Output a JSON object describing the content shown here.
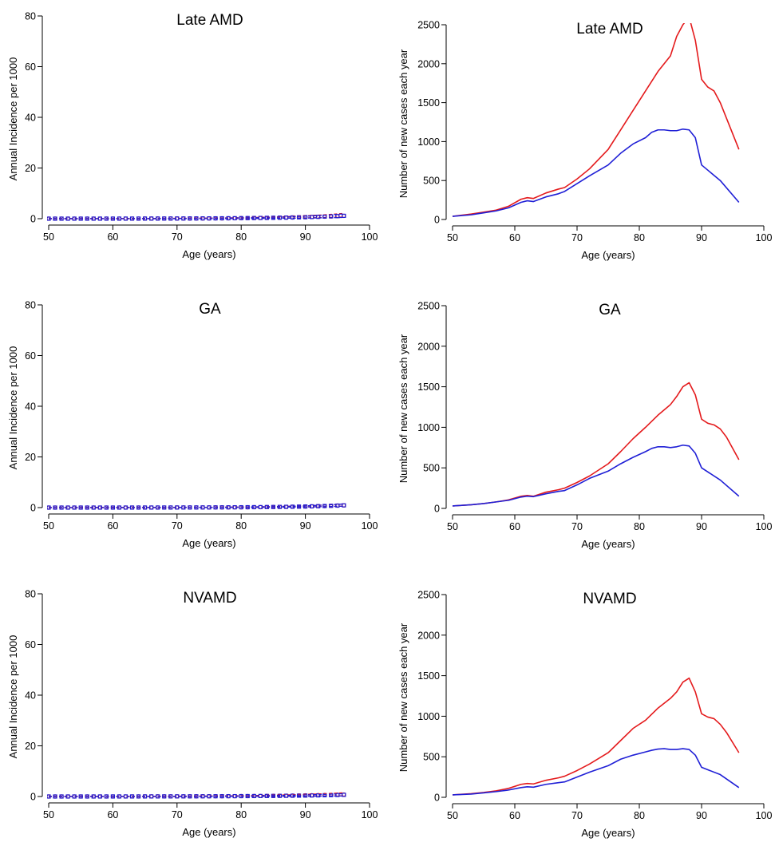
{
  "colors": {
    "red": "#e41a1c",
    "blue": "#1f1fd6"
  },
  "chart_data": [
    {
      "type": "scatter",
      "title": "Late AMD",
      "xlabel": "Age (years)",
      "ylabel": "Annual Incidence per 1000",
      "xlim": [
        50,
        100
      ],
      "xticks": [
        50,
        60,
        70,
        80,
        90,
        100
      ],
      "ylim": [
        0,
        80
      ],
      "yticks": [
        0,
        20,
        40,
        60,
        80
      ],
      "x_start": 50,
      "x_end": 96,
      "series": [
        {
          "kind": "points",
          "marker": "circle",
          "color": "red",
          "a": 0.0073,
          "b": 0.1093
        },
        {
          "kind": "points",
          "marker": "square",
          "color": "blue",
          "a": 0.0088,
          "b": 0.1056
        },
        {
          "kind": "dashed",
          "color": "red",
          "a": 0.0171,
          "b": 0.1047
        },
        {
          "kind": "dashed",
          "color": "blue",
          "a": 0.0117,
          "b": 0.1109
        },
        {
          "kind": "dashed",
          "color": "red",
          "a": 0.004,
          "b": 0.1105
        },
        {
          "kind": "dashed",
          "color": "blue",
          "a": 0.0026,
          "b": 0.1139
        }
      ]
    },
    {
      "type": "line",
      "title": "Late AMD",
      "xlabel": "Age (years)",
      "ylabel": "Number of new cases each year",
      "xlim": [
        50,
        100
      ],
      "xticks": [
        50,
        60,
        70,
        80,
        90,
        100
      ],
      "ylim": [
        0,
        2500
      ],
      "yticks": [
        0,
        500,
        1000,
        1500,
        2000,
        2500
      ],
      "series": [
        {
          "color": "red",
          "x": [
            50,
            53,
            55,
            57,
            59,
            61,
            62,
            63,
            65,
            67,
            68,
            70,
            72,
            75,
            77,
            79,
            81,
            83,
            85,
            86,
            87,
            88,
            89,
            90,
            91,
            92,
            93,
            96
          ],
          "y": [
            40,
            70,
            95,
            120,
            170,
            260,
            280,
            270,
            340,
            390,
            410,
            520,
            650,
            900,
            1150,
            1400,
            1650,
            1900,
            2100,
            2350,
            2500,
            2600,
            2300,
            1800,
            1700,
            1650,
            1500,
            900
          ]
        },
        {
          "color": "blue",
          "x": [
            50,
            53,
            55,
            57,
            59,
            61,
            62,
            63,
            65,
            67,
            68,
            70,
            72,
            75,
            77,
            79,
            81,
            82,
            83,
            84,
            85,
            86,
            87,
            88,
            89,
            90,
            93,
            96
          ],
          "y": [
            40,
            60,
            85,
            110,
            150,
            220,
            240,
            230,
            290,
            330,
            360,
            460,
            560,
            700,
            850,
            970,
            1050,
            1120,
            1150,
            1150,
            1140,
            1140,
            1160,
            1150,
            1050,
            700,
            500,
            220
          ]
        }
      ]
    },
    {
      "type": "scatter",
      "title": "GA",
      "xlabel": "Age (years)",
      "ylabel": "Annual Incidence per 1000",
      "xlim": [
        50,
        100
      ],
      "xticks": [
        50,
        60,
        70,
        80,
        90,
        100
      ],
      "ylim": [
        0,
        80
      ],
      "yticks": [
        0,
        20,
        40,
        60,
        80
      ],
      "x_start": 50,
      "x_end": 96,
      "series": [
        {
          "kind": "points",
          "marker": "circle",
          "color": "red",
          "a": 0.0036,
          "b": 0.1198
        },
        {
          "kind": "points",
          "marker": "square",
          "color": "blue",
          "a": 0.0036,
          "b": 0.1198
        },
        {
          "kind": "dashed",
          "color": "red",
          "a": 0.0062,
          "b": 0.1187
        },
        {
          "kind": "dashed",
          "color": "blue",
          "a": 0.006,
          "b": 0.1192
        },
        {
          "kind": "dashed",
          "color": "red",
          "a": 0.0024,
          "b": 0.1187
        },
        {
          "kind": "dashed",
          "color": "blue",
          "a": 0.0023,
          "b": 0.1192
        }
      ]
    },
    {
      "type": "line",
      "title": "GA",
      "xlabel": "Age (years)",
      "ylabel": "Number of new cases each year",
      "xlim": [
        50,
        100
      ],
      "xticks": [
        50,
        60,
        70,
        80,
        90,
        100
      ],
      "ylim": [
        0,
        2500
      ],
      "yticks": [
        0,
        500,
        1000,
        1500,
        2000,
        2500
      ],
      "series": [
        {
          "color": "red",
          "x": [
            50,
            53,
            55,
            57,
            59,
            61,
            62,
            63,
            65,
            67,
            68,
            70,
            72,
            75,
            77,
            79,
            81,
            83,
            85,
            86,
            87,
            88,
            89,
            90,
            91,
            92,
            93,
            94,
            96
          ],
          "y": [
            30,
            45,
            60,
            80,
            105,
            150,
            160,
            150,
            200,
            230,
            250,
            320,
            400,
            550,
            700,
            860,
            1000,
            1150,
            1280,
            1380,
            1500,
            1550,
            1400,
            1100,
            1050,
            1030,
            980,
            880,
            600
          ]
        },
        {
          "color": "blue",
          "x": [
            50,
            53,
            55,
            57,
            59,
            61,
            62,
            63,
            65,
            67,
            68,
            70,
            72,
            75,
            77,
            79,
            81,
            82,
            83,
            84,
            85,
            86,
            87,
            88,
            89,
            90,
            93,
            96
          ],
          "y": [
            30,
            45,
            60,
            80,
            100,
            140,
            150,
            145,
            180,
            210,
            220,
            290,
            370,
            460,
            550,
            630,
            700,
            740,
            760,
            760,
            750,
            760,
            780,
            770,
            680,
            500,
            350,
            150
          ]
        }
      ]
    },
    {
      "type": "scatter",
      "title": "NVAMD",
      "xlabel": "Age (years)",
      "ylabel": "Annual Incidence per 1000",
      "xlim": [
        50,
        100
      ],
      "xticks": [
        50,
        60,
        70,
        80,
        90,
        100
      ],
      "ylim": [
        0,
        80
      ],
      "yticks": [
        0,
        20,
        40,
        60,
        80
      ],
      "x_start": 50,
      "x_end": 96,
      "series": [
        {
          "kind": "points",
          "marker": "circle",
          "color": "red",
          "a": 0.0086,
          "b": 0.098
        },
        {
          "kind": "points",
          "marker": "square",
          "color": "blue",
          "a": 0.0086,
          "b": 0.0944
        },
        {
          "kind": "dashed",
          "color": "red",
          "a": 0.0194,
          "b": 0.0942
        },
        {
          "kind": "dashed",
          "color": "blue",
          "a": 0.0121,
          "b": 0.0985
        },
        {
          "kind": "dashed",
          "color": "red",
          "a": 0.002,
          "b": 0.1084
        },
        {
          "kind": "dashed",
          "color": "blue",
          "a": 0.0013,
          "b": 0.111
        }
      ]
    },
    {
      "type": "line",
      "title": "NVAMD",
      "xlabel": "Age (years)",
      "ylabel": "Number of new cases each year",
      "xlim": [
        50,
        100
      ],
      "xticks": [
        50,
        60,
        70,
        80,
        90,
        100
      ],
      "ylim": [
        0,
        2500
      ],
      "yticks": [
        0,
        500,
        1000,
        1500,
        2000,
        2500
      ],
      "series": [
        {
          "color": "red",
          "x": [
            50,
            53,
            55,
            57,
            59,
            61,
            62,
            63,
            65,
            67,
            68,
            70,
            72,
            75,
            77,
            79,
            81,
            83,
            85,
            86,
            87,
            88,
            89,
            90,
            91,
            92,
            93,
            94,
            96
          ],
          "y": [
            30,
            45,
            60,
            80,
            110,
            160,
            170,
            165,
            210,
            240,
            260,
            330,
            410,
            550,
            700,
            850,
            950,
            1100,
            1220,
            1300,
            1420,
            1470,
            1300,
            1030,
            990,
            970,
            900,
            800,
            550
          ]
        },
        {
          "color": "blue",
          "x": [
            50,
            53,
            55,
            57,
            59,
            61,
            62,
            63,
            65,
            67,
            68,
            70,
            72,
            75,
            77,
            79,
            81,
            82,
            83,
            84,
            85,
            86,
            87,
            88,
            89,
            90,
            93,
            96
          ],
          "y": [
            30,
            40,
            55,
            70,
            90,
            120,
            130,
            125,
            160,
            180,
            190,
            250,
            310,
            390,
            470,
            520,
            560,
            580,
            595,
            600,
            590,
            590,
            600,
            590,
            520,
            370,
            280,
            120
          ]
        }
      ]
    }
  ]
}
